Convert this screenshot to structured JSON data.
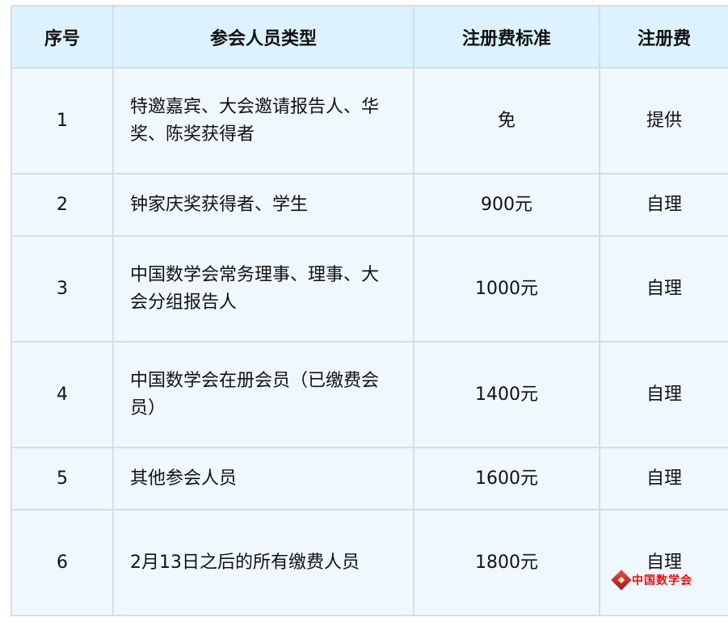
{
  "headers": [
    "序号",
    "参会人员类型",
    "注册费标准",
    "注册费"
  ],
  "rows": [
    {
      "no": "1",
      "type": "特邀嘉宾、大会邀请报告人、华奖、陈奖获得者",
      "standard": "免",
      "fee": "提供"
    },
    {
      "no": "2",
      "type": "钟家庆奖获得者、学生",
      "standard": "900元",
      "fee": "自理"
    },
    {
      "no": "3",
      "type": "中国数学会常务理事、理事、大会分组报告人",
      "standard": "1000元",
      "fee": "自理"
    },
    {
      "no": "4",
      "type": "中国数学会在册会员（已缴费会员）",
      "standard": "1400元",
      "fee": "自理"
    },
    {
      "no": "5",
      "type": "其他参会人员",
      "standard": "1600元",
      "fee": "自理"
    },
    {
      "no": "6",
      "type": "2月13日之后的所有缴费人员",
      "standard": "1800元",
      "fee": "自理"
    }
  ],
  "watermark": {
    "text": "中国数学会",
    "color": "#e01010"
  },
  "colors": {
    "header_bg": "#dcf2fe",
    "body_bg": "#f0f8ff",
    "border": "#dcdcdc"
  }
}
